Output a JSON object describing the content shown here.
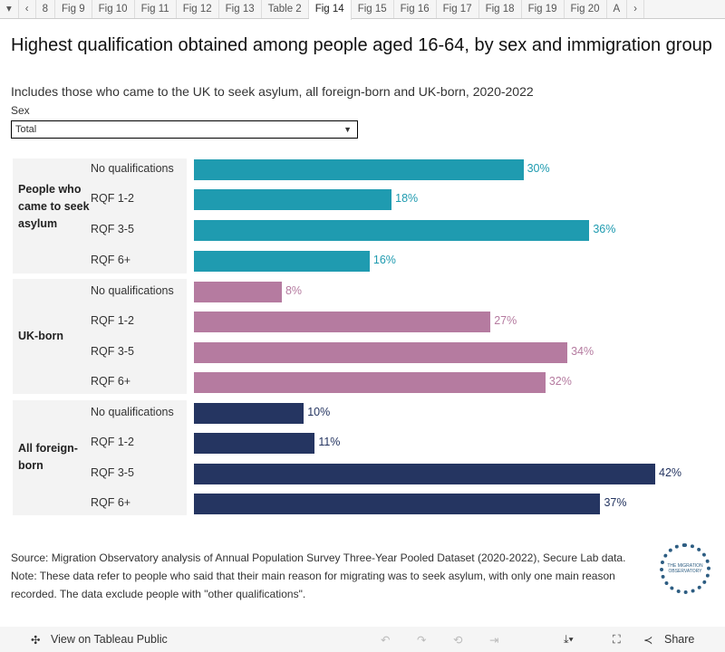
{
  "tabs": [
    "▾",
    "‹",
    "8",
    "Fig 9",
    "Fig 10",
    "Fig 11",
    "Fig 12",
    "Fig 13",
    "Table 2",
    "Fig 14",
    "Fig 15",
    "Fig 16",
    "Fig 17",
    "Fig 18",
    "Fig 19",
    "Fig 20",
    "A",
    "›"
  ],
  "active_tab": "Fig 14",
  "filter": {
    "label": "Sex",
    "value": "Total"
  },
  "chart_data": {
    "type": "bar",
    "orientation": "horizontal",
    "title": "Highest qualification obtained among people aged 16-64, by sex and immigration group",
    "subtitle": "Includes those who came to the UK to seek asylum, all foreign-born and UK-born, 2020-2022",
    "categories": [
      "No qualifications",
      "RQF 1-2",
      "RQF 3-5",
      "RQF 6+"
    ],
    "groups": [
      {
        "name": "People who came to seek asylum",
        "color": "#1f9bb0",
        "values": [
          30,
          18,
          36,
          16
        ],
        "labels": [
          "30%",
          "18%",
          "36%",
          "16%"
        ]
      },
      {
        "name": "UK-born",
        "color": "#b57ba0",
        "values": [
          8,
          27,
          34,
          32
        ],
        "labels": [
          "8%",
          "27%",
          "34%",
          "32%"
        ]
      },
      {
        "name": "All foreign-born",
        "color": "#253561",
        "values": [
          10,
          11,
          42,
          37
        ],
        "labels": [
          "10%",
          "11%",
          "42%",
          "37%"
        ]
      }
    ],
    "unit": "%",
    "grid": false
  },
  "footnote": "Source: Migration Observatory analysis of Annual Population Survey Three-Year Pooled Dataset (2020-2022), Secure Lab data. Note: These data refer to people who said that their main reason for migrating was to seek asylum, with only one main reason recorded. The data exclude people with \"other qualifications\".",
  "logo_text": "THE MIGRATION OBSERVATORY",
  "toolbar": {
    "view": "View on Tableau Public",
    "share": "Share"
  }
}
